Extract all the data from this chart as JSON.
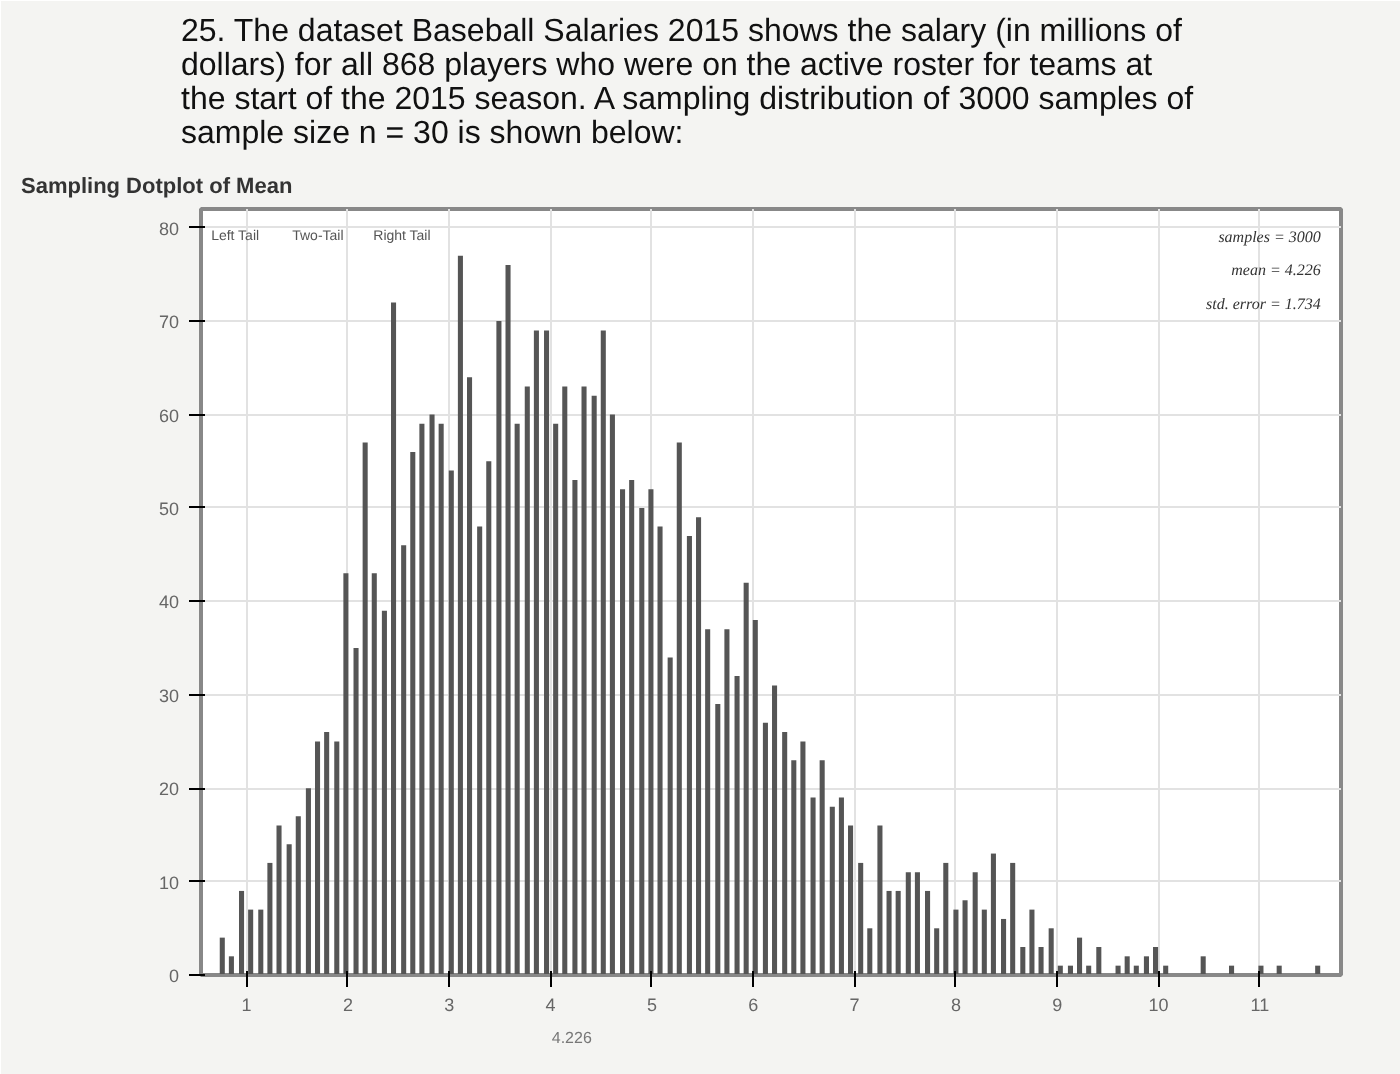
{
  "chart_data": {
    "type": "bar",
    "title": "25. The dataset Baseball Salaries 2015 shows the salary (in millions of dollars) for all 868 players who were on the active roster for teams at the start of the 2015 season. A sampling distribution of 3000 samples of sample size n = 30 is shown below:",
    "subtitle": "Sampling Dotplot of Mean",
    "x": [
      0.76,
      0.85,
      0.95,
      1.04,
      1.14,
      1.23,
      1.32,
      1.42,
      1.51,
      1.61,
      1.7,
      1.79,
      1.89,
      1.98,
      2.08,
      2.17,
      2.26,
      2.36,
      2.45,
      2.55,
      2.64,
      2.73,
      2.83,
      2.92,
      3.02,
      3.11,
      3.2,
      3.3,
      3.39,
      3.49,
      3.58,
      3.67,
      3.77,
      3.86,
      3.96,
      4.05,
      4.14,
      4.24,
      4.33,
      4.43,
      4.52,
      4.61,
      4.71,
      4.8,
      4.9,
      4.99,
      5.08,
      5.18,
      5.27,
      5.37,
      5.46,
      5.55,
      5.65,
      5.74,
      5.84,
      5.93,
      6.02,
      6.12,
      6.21,
      6.31,
      6.4,
      6.49,
      6.59,
      6.68,
      6.78,
      6.87,
      6.96,
      7.06,
      7.15,
      7.25,
      7.34,
      7.43,
      7.53,
      7.62,
      7.72,
      7.81,
      7.9,
      8.0,
      8.09,
      8.19,
      8.28,
      8.37,
      8.47,
      8.56,
      8.66,
      8.75,
      8.84,
      8.94,
      9.03,
      9.13,
      9.22,
      9.31,
      9.41,
      9.6,
      9.69,
      9.78,
      9.88,
      9.97,
      10.07,
      10.44,
      10.72,
      11.01,
      11.19,
      11.57
    ],
    "values": [
      4,
      2,
      9,
      7,
      7,
      12,
      16,
      14,
      17,
      20,
      25,
      26,
      25,
      43,
      35,
      57,
      43,
      39,
      72,
      46,
      56,
      59,
      60,
      59,
      54,
      77,
      64,
      48,
      55,
      70,
      76,
      59,
      63,
      69,
      69,
      59,
      63,
      53,
      63,
      62,
      69,
      60,
      52,
      53,
      50,
      52,
      48,
      34,
      57,
      47,
      49,
      37,
      29,
      37,
      32,
      42,
      38,
      27,
      31,
      26,
      23,
      25,
      19,
      23,
      18,
      19,
      16,
      12,
      5,
      16,
      9,
      9,
      11,
      11,
      9,
      5,
      12,
      7,
      8,
      11,
      7,
      13,
      6,
      12,
      3,
      7,
      3,
      5,
      1,
      1,
      4,
      1,
      3,
      1,
      2,
      1,
      2,
      3,
      1,
      2,
      1,
      1,
      1,
      1
    ],
    "color": "#555555",
    "xlim": [
      0.55,
      11.8
    ],
    "xticks": [
      1,
      2,
      3,
      4,
      5,
      6,
      7,
      8,
      9,
      10,
      11
    ],
    "ylim": [
      0,
      82
    ],
    "yticks": [
      0,
      10,
      20,
      30,
      40,
      50,
      60,
      70,
      80
    ],
    "grid": true,
    "annotations": [
      "Left Tail",
      "Two-Tail",
      "Right Tail",
      "samples = 3000",
      "mean = 4.226",
      "std. error = 1.734",
      "4.226"
    ]
  }
}
